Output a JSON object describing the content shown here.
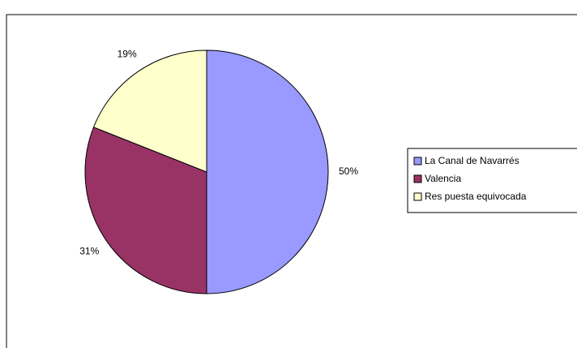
{
  "chart_data": {
    "type": "pie",
    "categories": [
      "La Canal de Navarrés",
      "Valencia",
      "Res puesta equivocada"
    ],
    "values": [
      50,
      31,
      19
    ],
    "value_labels": [
      "50%",
      "31%",
      "19%"
    ],
    "colors": [
      "#9999ff",
      "#993366",
      "#ffffcc"
    ],
    "legend": "right"
  }
}
